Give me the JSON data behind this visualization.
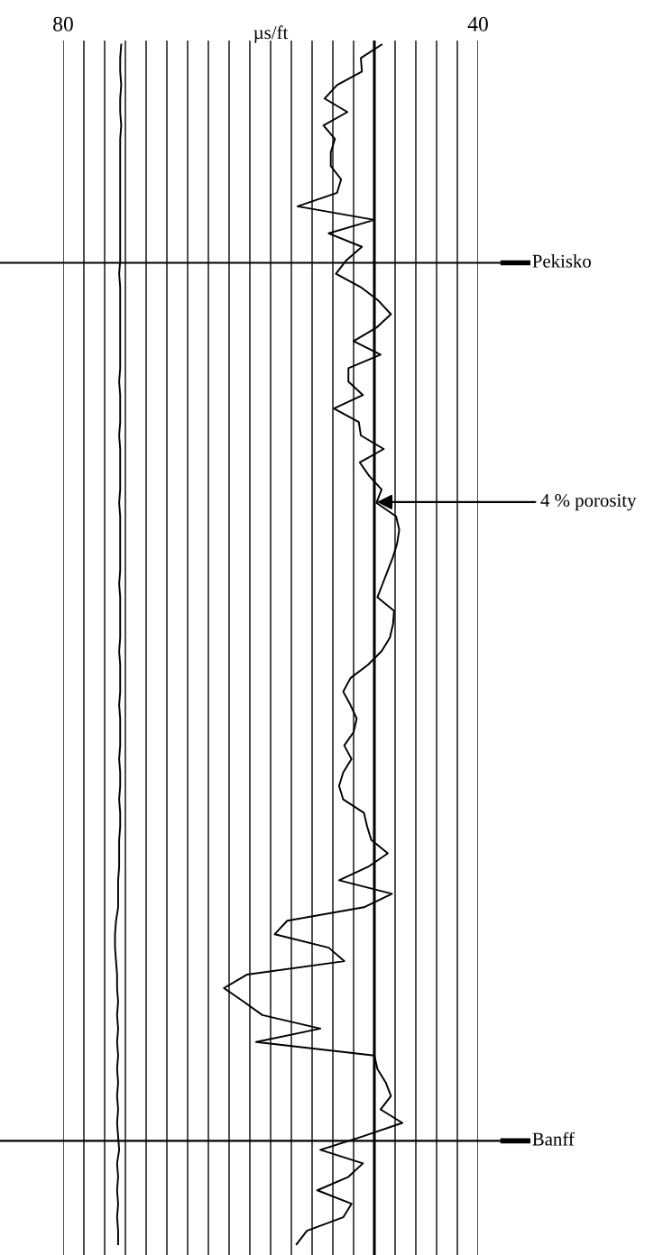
{
  "chart_data": {
    "type": "line",
    "orientation": "horizontal",
    "xlabel": "µs/ft",
    "categories": [
      null,
      null,
      null,
      null,
      null,
      null,
      null,
      null,
      null,
      null,
      null,
      null,
      null,
      null,
      null,
      null,
      null,
      null,
      null,
      null,
      null,
      null,
      null,
      null,
      null,
      null,
      null,
      null,
      null,
      null,
      null,
      null,
      null,
      null,
      null,
      null,
      null,
      null,
      null,
      null,
      null,
      null,
      null,
      null,
      null,
      null,
      null,
      null,
      null,
      null,
      null,
      null,
      null,
      null,
      null,
      null,
      null,
      null,
      null,
      null,
      null,
      null,
      null,
      null,
      null,
      null,
      null,
      null,
      null,
      null,
      null,
      null,
      null,
      null,
      null,
      null,
      null,
      null,
      null,
      null,
      null,
      null,
      null,
      null,
      null,
      null,
      null,
      null,
      null,
      null
    ],
    "series": [
      {
        "color": "#000000",
        "values": [
          74.4,
          74.5,
          74.5,
          74.4,
          74.5,
          74.5,
          74.4,
          74.5,
          74.5,
          74.5,
          74.5,
          74.5,
          74.5,
          74.5,
          74.5,
          74.5,
          74.5,
          74.6,
          74.5,
          74.5,
          74.5,
          74.5,
          74.5,
          74.5,
          74.5,
          74.6,
          74.5,
          74.5,
          74.5,
          74.6,
          74.5,
          74.5,
          74.5,
          74.5,
          74.6,
          74.5,
          74.5,
          74.5,
          74.5,
          74.5,
          74.6,
          74.5,
          74.5,
          74.5,
          74.5,
          74.6,
          74.5,
          74.5,
          74.5,
          74.6,
          74.5,
          74.5,
          74.5,
          74.6,
          74.5,
          74.5,
          74.6,
          74.5,
          74.5,
          74.6,
          74.6,
          74.6,
          74.7,
          74.7,
          74.7,
          74.9,
          75.0,
          75.0,
          74.9,
          74.8,
          74.8,
          74.7,
          74.8,
          74.7,
          74.8,
          74.7,
          74.8,
          74.7,
          74.8,
          74.7,
          74.8,
          74.7,
          74.6,
          74.8,
          74.7,
          74.8,
          74.7,
          74.8,
          74.7,
          74.7
        ]
      },
      {
        "color": "#000000",
        "values": [
          49.3,
          51.3,
          51.2,
          53.6,
          54.8,
          52.6,
          54.9,
          53.8,
          54.2,
          54.2,
          53.2,
          53.6,
          57.4,
          50.0,
          54.4,
          51.2,
          52.7,
          53.7,
          51.3,
          49.6,
          48.4,
          49.8,
          52.0,
          49.4,
          52.5,
          52.5,
          51.1,
          53.9,
          51.5,
          51.3,
          49.1,
          51.4,
          50.5,
          49.3,
          49.8,
          47.9,
          47.6,
          47.8,
          48.2,
          48.7,
          49.2,
          49.7,
          48.1,
          48.2,
          48.5,
          49.3,
          50.6,
          52.3,
          53.0,
          52.3,
          51.7,
          52.0,
          52.9,
          52.2,
          53.0,
          53.4,
          53.0,
          51.0,
          50.7,
          50.3,
          48.7,
          50.6,
          53.4,
          48.3,
          51.0,
          58.4,
          59.6,
          54.4,
          52.9,
          62.3,
          64.5,
          62.6,
          60.8,
          55.2,
          61.4,
          50.0,
          49.7,
          48.9,
          48.4,
          49.4,
          47.3,
          51.1,
          55.2,
          51.1,
          52.5,
          55.5,
          52.2,
          53.0,
          56.5,
          57.5
        ]
      }
    ],
    "xlim": [
      80,
      40
    ],
    "xticks": [
      80,
      {
        "value": 78,
        "label": null
      },
      {
        "value": 76,
        "label": null
      },
      {
        "value": 74,
        "label": null
      },
      {
        "value": 72,
        "label": null
      },
      {
        "value": 70,
        "label": null
      },
      {
        "value": 68,
        "label": null
      },
      {
        "value": 66,
        "label": null
      },
      {
        "value": 64,
        "label": null
      },
      {
        "value": 62,
        "label": null
      },
      {
        "value": 60,
        "label": null
      },
      {
        "value": 58,
        "label": null
      },
      {
        "value": 56,
        "label": null
      },
      {
        "value": 54,
        "label": null
      },
      {
        "value": 52,
        "label": null
      },
      {
        "value": 50,
        "label": null
      },
      {
        "value": 48,
        "label": null
      },
      {
        "value": 46,
        "label": null
      },
      {
        "value": 44,
        "label": null
      },
      {
        "value": 42,
        "label": null
      },
      40
    ],
    "annotations": [
      "Pekisko",
      "Banff"
    ],
    "grid": "x",
    "line_style": "solid",
    "tick_labels": "x",
    "ref_lines": [
      {
        "axis": "x",
        "value": 50,
        "label": "4 % porosity",
        "color": "#000000"
      }
    ]
  }
}
